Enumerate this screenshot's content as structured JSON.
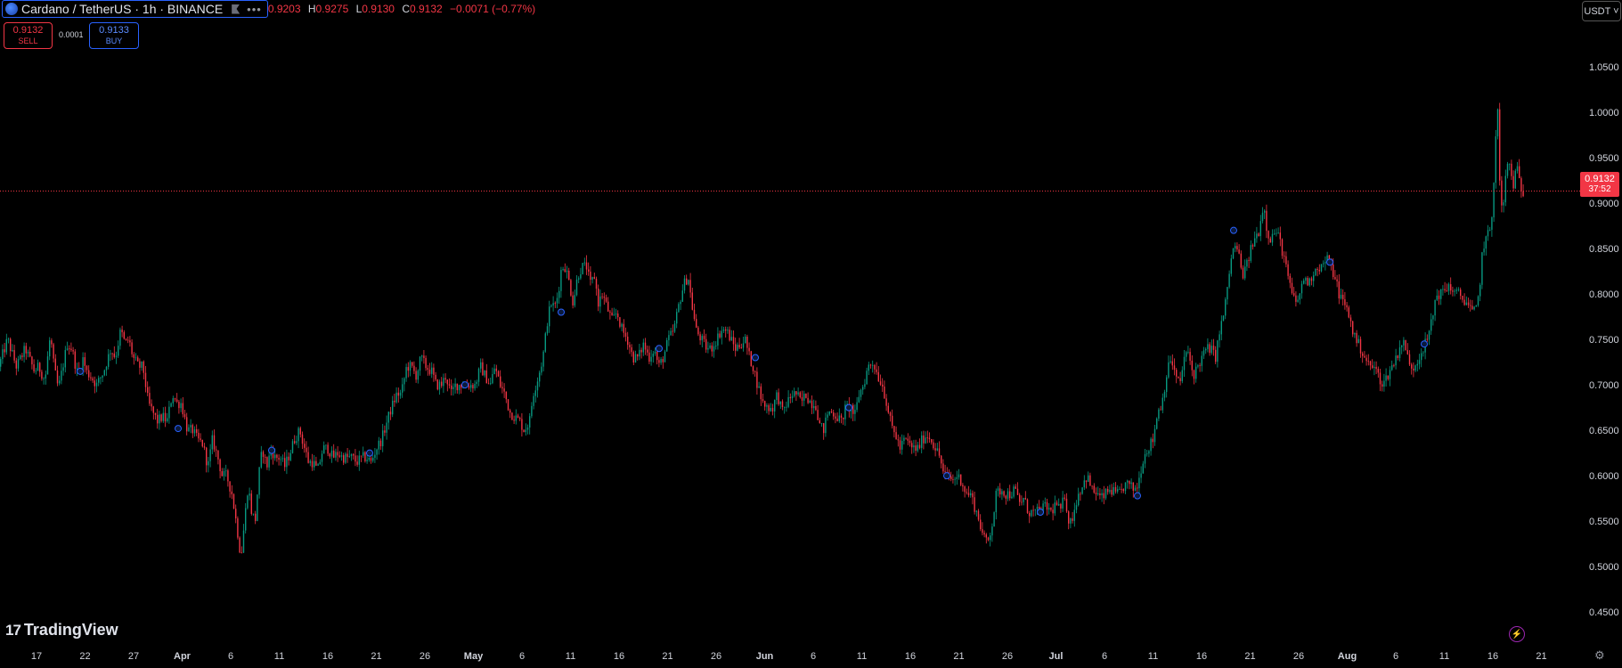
{
  "header": {
    "symbol": "Cardano / TetherUS · 1h · BINANCE",
    "ohlc": {
      "o_label": "",
      "o": "0.9203",
      "h_label": "H",
      "h": "0.9275",
      "l_label": "L",
      "l": "0.9130",
      "c_label": "C",
      "c": "0.9132",
      "change": "−0.0071 (−0.77%)"
    },
    "more_label": "•••"
  },
  "trade": {
    "sell_price": "0.9132",
    "sell_label": "SELL",
    "spread": "0.0001",
    "buy_price": "0.9133",
    "buy_label": "BUY"
  },
  "currency_button": "USDT ˅",
  "current_price": {
    "value": "0.9132",
    "countdown": "37:52"
  },
  "branding": {
    "logo_mark": "17",
    "name": "TradingView"
  },
  "colors": {
    "up": "#089981",
    "down": "#f23645",
    "background": "#000000",
    "accent": "#2962ff"
  },
  "icons": {
    "flag": "flag-icon",
    "more": "more-icon",
    "flash": "lightning-icon",
    "settings": "gear-icon"
  },
  "chart_data": {
    "type": "candlestick",
    "interval": "1h",
    "y_axis": {
      "ticks": [
        "1.0500",
        "1.0000",
        "0.9500",
        "0.9000",
        "0.8500",
        "0.8000",
        "0.7500",
        "0.7000",
        "0.6500",
        "0.6000",
        "0.5500",
        "0.5000",
        "0.4500"
      ],
      "range": [
        0.4375,
        1.0725
      ]
    },
    "x_axis": {
      "ticks": [
        {
          "label": "17",
          "bold": false
        },
        {
          "label": "22",
          "bold": false
        },
        {
          "label": "27",
          "bold": false
        },
        {
          "label": "Apr",
          "bold": true
        },
        {
          "label": "6",
          "bold": false
        },
        {
          "label": "11",
          "bold": false
        },
        {
          "label": "16",
          "bold": false
        },
        {
          "label": "21",
          "bold": false
        },
        {
          "label": "26",
          "bold": false
        },
        {
          "label": "May",
          "bold": true
        },
        {
          "label": "6",
          "bold": false
        },
        {
          "label": "11",
          "bold": false
        },
        {
          "label": "16",
          "bold": false
        },
        {
          "label": "21",
          "bold": false
        },
        {
          "label": "26",
          "bold": false
        },
        {
          "label": "Jun",
          "bold": true
        },
        {
          "label": "6",
          "bold": false
        },
        {
          "label": "11",
          "bold": false
        },
        {
          "label": "16",
          "bold": false
        },
        {
          "label": "21",
          "bold": false
        },
        {
          "label": "26",
          "bold": false
        },
        {
          "label": "Jul",
          "bold": true
        },
        {
          "label": "6",
          "bold": false
        },
        {
          "label": "11",
          "bold": false
        },
        {
          "label": "16",
          "bold": false
        },
        {
          "label": "21",
          "bold": false
        },
        {
          "label": "26",
          "bold": false
        },
        {
          "label": "Aug",
          "bold": true
        },
        {
          "label": "6",
          "bold": false
        },
        {
          "label": "11",
          "bold": false
        },
        {
          "label": "16",
          "bold": false
        },
        {
          "label": "21",
          "bold": false
        }
      ]
    },
    "price_path": [
      [
        0,
        0.72
      ],
      [
        10,
        0.75
      ],
      [
        20,
        0.72
      ],
      [
        30,
        0.74
      ],
      [
        40,
        0.715
      ],
      [
        45,
        0.72
      ],
      [
        52,
        0.705
      ],
      [
        58,
        0.755
      ],
      [
        62,
        0.72
      ],
      [
        67,
        0.695
      ],
      [
        72,
        0.72
      ],
      [
        77,
        0.745
      ],
      [
        82,
        0.74
      ],
      [
        89,
        0.71
      ],
      [
        95,
        0.73
      ],
      [
        98,
        0.715
      ],
      [
        103,
        0.71
      ],
      [
        110,
        0.7
      ],
      [
        118,
        0.715
      ],
      [
        126,
        0.74
      ],
      [
        131,
        0.73
      ],
      [
        137,
        0.76
      ],
      [
        142,
        0.745
      ],
      [
        146,
        0.75
      ],
      [
        151,
        0.73
      ],
      [
        157,
        0.72
      ],
      [
        162,
        0.72
      ],
      [
        168,
        0.68
      ],
      [
        173,
        0.67
      ],
      [
        178,
        0.66
      ],
      [
        184,
        0.665
      ],
      [
        189,
        0.66
      ],
      [
        195,
        0.69
      ],
      [
        200,
        0.68
      ],
      [
        205,
        0.68
      ],
      [
        212,
        0.65
      ],
      [
        218,
        0.65
      ],
      [
        223,
        0.64
      ],
      [
        229,
        0.635
      ],
      [
        235,
        0.61
      ],
      [
        240,
        0.64
      ],
      [
        246,
        0.62
      ],
      [
        251,
        0.6
      ],
      [
        256,
        0.6
      ],
      [
        262,
        0.58
      ],
      [
        268,
        0.54
      ],
      [
        272,
        0.51
      ],
      [
        276,
        0.55
      ],
      [
        280,
        0.59
      ],
      [
        284,
        0.56
      ],
      [
        288,
        0.55
      ],
      [
        292,
        0.6
      ],
      [
        296,
        0.63
      ],
      [
        301,
        0.61
      ],
      [
        306,
        0.63
      ],
      [
        310,
        0.62
      ],
      [
        316,
        0.62
      ],
      [
        321,
        0.61
      ],
      [
        327,
        0.625
      ],
      [
        332,
        0.64
      ],
      [
        338,
        0.65
      ],
      [
        342,
        0.635
      ],
      [
        348,
        0.615
      ],
      [
        353,
        0.615
      ],
      [
        358,
        0.605
      ],
      [
        364,
        0.63
      ],
      [
        370,
        0.63
      ],
      [
        375,
        0.62
      ],
      [
        381,
        0.625
      ],
      [
        386,
        0.62
      ],
      [
        391,
        0.62
      ],
      [
        397,
        0.62
      ],
      [
        402,
        0.615
      ],
      [
        408,
        0.62
      ],
      [
        413,
        0.62
      ],
      [
        418,
        0.615
      ],
      [
        424,
        0.63
      ],
      [
        430,
        0.64
      ],
      [
        436,
        0.66
      ],
      [
        441,
        0.675
      ],
      [
        447,
        0.69
      ],
      [
        452,
        0.69
      ],
      [
        458,
        0.72
      ],
      [
        463,
        0.72
      ],
      [
        469,
        0.71
      ],
      [
        474,
        0.73
      ],
      [
        480,
        0.72
      ],
      [
        486,
        0.715
      ],
      [
        491,
        0.7
      ],
      [
        497,
        0.7
      ],
      [
        502,
        0.71
      ],
      [
        508,
        0.69
      ],
      [
        513,
        0.7
      ],
      [
        519,
        0.7
      ],
      [
        524,
        0.7
      ],
      [
        530,
        0.7
      ],
      [
        535,
        0.7
      ],
      [
        541,
        0.72
      ],
      [
        546,
        0.71
      ],
      [
        552,
        0.7
      ],
      [
        557,
        0.72
      ],
      [
        563,
        0.7
      ],
      [
        568,
        0.69
      ],
      [
        574,
        0.67
      ],
      [
        579,
        0.665
      ],
      [
        585,
        0.66
      ],
      [
        590,
        0.65
      ],
      [
        596,
        0.66
      ],
      [
        600,
        0.69
      ],
      [
        606,
        0.71
      ],
      [
        611,
        0.73
      ],
      [
        616,
        0.77
      ],
      [
        620,
        0.79
      ],
      [
        624,
        0.785
      ],
      [
        628,
        0.8
      ],
      [
        632,
        0.83
      ],
      [
        636,
        0.83
      ],
      [
        640,
        0.815
      ],
      [
        645,
        0.79
      ],
      [
        650,
        0.82
      ],
      [
        655,
        0.83
      ],
      [
        660,
        0.83
      ],
      [
        664,
        0.81
      ],
      [
        669,
        0.82
      ],
      [
        673,
        0.79
      ],
      [
        678,
        0.8
      ],
      [
        683,
        0.785
      ],
      [
        689,
        0.77
      ],
      [
        694,
        0.78
      ],
      [
        700,
        0.76
      ],
      [
        706,
        0.75
      ],
      [
        712,
        0.73
      ],
      [
        718,
        0.73
      ],
      [
        724,
        0.745
      ],
      [
        730,
        0.73
      ],
      [
        736,
        0.74
      ],
      [
        741,
        0.72
      ],
      [
        746,
        0.73
      ],
      [
        752,
        0.75
      ],
      [
        758,
        0.76
      ],
      [
        764,
        0.79
      ],
      [
        769,
        0.81
      ],
      [
        774,
        0.82
      ],
      [
        778,
        0.79
      ],
      [
        783,
        0.76
      ],
      [
        789,
        0.75
      ],
      [
        795,
        0.74
      ],
      [
        800,
        0.74
      ],
      [
        806,
        0.75
      ],
      [
        811,
        0.76
      ],
      [
        817,
        0.76
      ],
      [
        822,
        0.75
      ],
      [
        827,
        0.74
      ],
      [
        833,
        0.745
      ],
      [
        838,
        0.75
      ],
      [
        843,
        0.73
      ],
      [
        847,
        0.72
      ],
      [
        852,
        0.7
      ],
      [
        858,
        0.68
      ],
      [
        864,
        0.675
      ],
      [
        869,
        0.675
      ],
      [
        874,
        0.69
      ],
      [
        880,
        0.67
      ],
      [
        885,
        0.68
      ],
      [
        891,
        0.69
      ],
      [
        896,
        0.69
      ],
      [
        901,
        0.68
      ],
      [
        906,
        0.69
      ],
      [
        912,
        0.68
      ],
      [
        917,
        0.68
      ],
      [
        922,
        0.655
      ],
      [
        926,
        0.65
      ],
      [
        931,
        0.67
      ],
      [
        936,
        0.67
      ],
      [
        941,
        0.665
      ],
      [
        946,
        0.66
      ],
      [
        951,
        0.675
      ],
      [
        957,
        0.675
      ],
      [
        961,
        0.665
      ],
      [
        966,
        0.69
      ],
      [
        971,
        0.7
      ],
      [
        976,
        0.72
      ],
      [
        982,
        0.725
      ],
      [
        987,
        0.71
      ],
      [
        992,
        0.7
      ],
      [
        997,
        0.68
      ],
      [
        1002,
        0.655
      ],
      [
        1007,
        0.645
      ],
      [
        1012,
        0.63
      ],
      [
        1017,
        0.64
      ],
      [
        1022,
        0.635
      ],
      [
        1027,
        0.63
      ],
      [
        1032,
        0.63
      ],
      [
        1037,
        0.64
      ],
      [
        1042,
        0.645
      ],
      [
        1047,
        0.64
      ],
      [
        1052,
        0.63
      ],
      [
        1057,
        0.62
      ],
      [
        1061,
        0.6
      ],
      [
        1066,
        0.6
      ],
      [
        1071,
        0.595
      ],
      [
        1076,
        0.6
      ],
      [
        1081,
        0.595
      ],
      [
        1086,
        0.58
      ],
      [
        1091,
        0.58
      ],
      [
        1096,
        0.565
      ],
      [
        1101,
        0.55
      ],
      [
        1106,
        0.53
      ],
      [
        1111,
        0.53
      ],
      [
        1116,
        0.55
      ],
      [
        1120,
        0.58
      ],
      [
        1126,
        0.585
      ],
      [
        1131,
        0.58
      ],
      [
        1136,
        0.58
      ],
      [
        1141,
        0.585
      ],
      [
        1146,
        0.57
      ],
      [
        1151,
        0.575
      ],
      [
        1156,
        0.56
      ],
      [
        1162,
        0.56
      ],
      [
        1167,
        0.56
      ],
      [
        1172,
        0.565
      ],
      [
        1177,
        0.565
      ],
      [
        1182,
        0.56
      ],
      [
        1187,
        0.57
      ],
      [
        1192,
        0.56
      ],
      [
        1197,
        0.58
      ],
      [
        1202,
        0.545
      ],
      [
        1207,
        0.56
      ],
      [
        1212,
        0.58
      ],
      [
        1217,
        0.59
      ],
      [
        1222,
        0.6
      ],
      [
        1227,
        0.585
      ],
      [
        1233,
        0.58
      ],
      [
        1238,
        0.575
      ],
      [
        1243,
        0.58
      ],
      [
        1248,
        0.585
      ],
      [
        1254,
        0.58
      ],
      [
        1259,
        0.58
      ],
      [
        1264,
        0.59
      ],
      [
        1269,
        0.59
      ],
      [
        1274,
        0.585
      ],
      [
        1279,
        0.59
      ],
      [
        1285,
        0.62
      ],
      [
        1290,
        0.63
      ],
      [
        1296,
        0.64
      ],
      [
        1301,
        0.67
      ],
      [
        1306,
        0.68
      ],
      [
        1311,
        0.71
      ],
      [
        1316,
        0.73
      ],
      [
        1321,
        0.71
      ],
      [
        1326,
        0.7
      ],
      [
        1331,
        0.73
      ],
      [
        1336,
        0.735
      ],
      [
        1341,
        0.71
      ],
      [
        1346,
        0.72
      ],
      [
        1351,
        0.73
      ],
      [
        1356,
        0.74
      ],
      [
        1361,
        0.74
      ],
      [
        1366,
        0.73
      ],
      [
        1371,
        0.76
      ],
      [
        1376,
        0.78
      ],
      [
        1381,
        0.82
      ],
      [
        1386,
        0.85
      ],
      [
        1391,
        0.85
      ],
      [
        1396,
        0.82
      ],
      [
        1401,
        0.83
      ],
      [
        1406,
        0.85
      ],
      [
        1410,
        0.86
      ],
      [
        1415,
        0.87
      ],
      [
        1420,
        0.9
      ],
      [
        1424,
        0.87
      ],
      [
        1428,
        0.86
      ],
      [
        1433,
        0.87
      ],
      [
        1438,
        0.86
      ],
      [
        1443,
        0.84
      ],
      [
        1447,
        0.82
      ],
      [
        1452,
        0.8
      ],
      [
        1456,
        0.79
      ],
      [
        1461,
        0.8
      ],
      [
        1466,
        0.82
      ],
      [
        1471,
        0.81
      ],
      [
        1476,
        0.825
      ],
      [
        1481,
        0.83
      ],
      [
        1486,
        0.83
      ],
      [
        1491,
        0.84
      ],
      [
        1495,
        0.83
      ],
      [
        1500,
        0.82
      ],
      [
        1505,
        0.8
      ],
      [
        1510,
        0.79
      ],
      [
        1515,
        0.78
      ],
      [
        1520,
        0.76
      ],
      [
        1524,
        0.75
      ],
      [
        1529,
        0.74
      ],
      [
        1534,
        0.73
      ],
      [
        1539,
        0.72
      ],
      [
        1544,
        0.72
      ],
      [
        1549,
        0.71
      ],
      [
        1554,
        0.7
      ],
      [
        1559,
        0.71
      ],
      [
        1564,
        0.72
      ],
      [
        1569,
        0.73
      ],
      [
        1574,
        0.745
      ],
      [
        1579,
        0.745
      ],
      [
        1584,
        0.72
      ],
      [
        1589,
        0.72
      ],
      [
        1594,
        0.73
      ],
      [
        1599,
        0.74
      ],
      [
        1604,
        0.75
      ],
      [
        1609,
        0.77
      ],
      [
        1614,
        0.8
      ],
      [
        1619,
        0.8
      ],
      [
        1624,
        0.805
      ],
      [
        1629,
        0.81
      ],
      [
        1634,
        0.8
      ],
      [
        1639,
        0.8
      ],
      [
        1644,
        0.795
      ],
      [
        1649,
        0.79
      ],
      [
        1654,
        0.78
      ],
      [
        1658,
        0.78
      ],
      [
        1662,
        0.8
      ],
      [
        1666,
        0.85
      ],
      [
        1670,
        0.86
      ],
      [
        1674,
        0.87
      ],
      [
        1677,
        0.89
      ],
      [
        1680,
        0.96
      ],
      [
        1683,
        1.0
      ],
      [
        1686,
        0.9
      ],
      [
        1689,
        0.89
      ],
      [
        1692,
        0.93
      ],
      [
        1695,
        0.95
      ],
      [
        1698,
        0.93
      ],
      [
        1701,
        0.92
      ],
      [
        1704,
        0.94
      ],
      [
        1706,
        0.93
      ],
      [
        1708,
        0.92
      ],
      [
        1710,
        0.9132
      ]
    ],
    "markers": [
      [
        90,
        0.715
      ],
      [
        200,
        0.652
      ],
      [
        305,
        0.628
      ],
      [
        415,
        0.625
      ],
      [
        522,
        0.7
      ],
      [
        630,
        0.78
      ],
      [
        740,
        0.74
      ],
      [
        848,
        0.73
      ],
      [
        953,
        0.675
      ],
      [
        1063,
        0.6
      ],
      [
        1168,
        0.56
      ],
      [
        1277,
        0.578
      ],
      [
        1385,
        0.87
      ],
      [
        1493,
        0.835
      ],
      [
        1599,
        0.745
      ]
    ]
  }
}
